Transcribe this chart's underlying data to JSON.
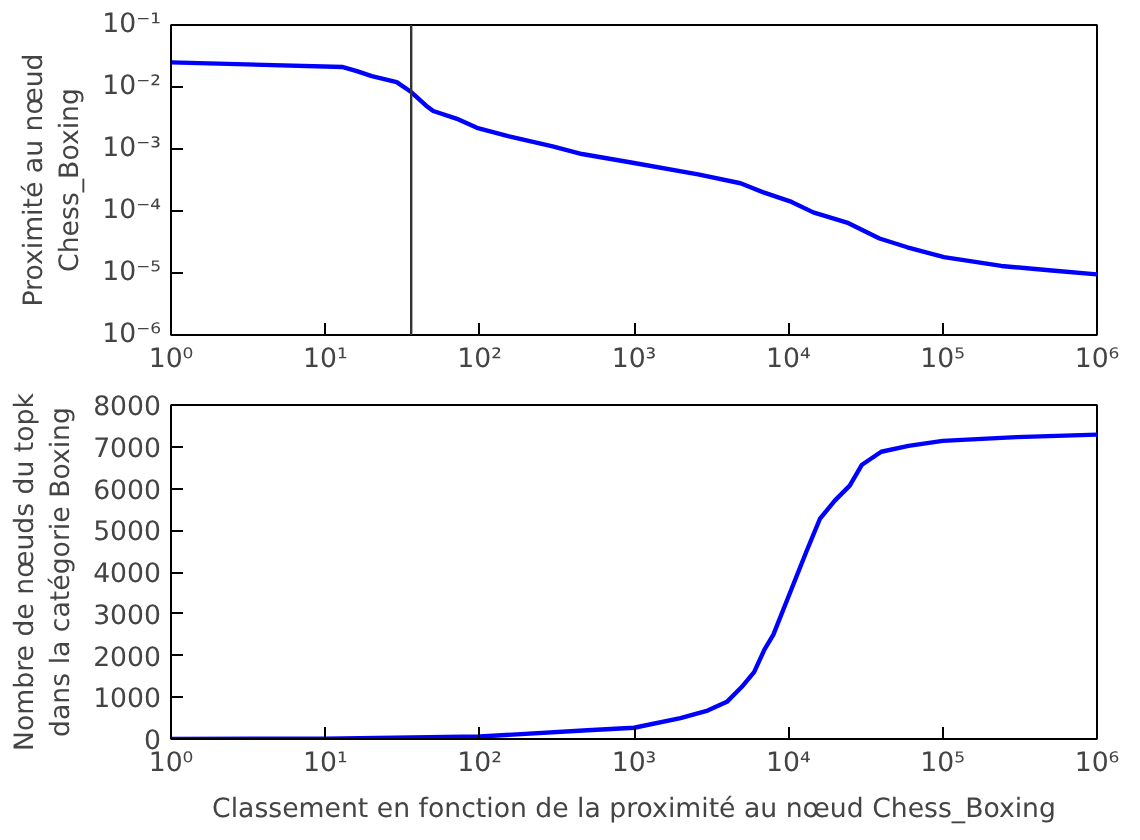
{
  "chart_data": [
    {
      "type": "line",
      "ylabel": "Proximité au nœud\nChess_Boxing",
      "log": "xy",
      "grid": false,
      "marker": "none",
      "line_style": "solid",
      "xlim": [
        1,
        1000000
      ],
      "ylim": [
        1e-06,
        0.1
      ],
      "xticks": [
        {
          "value": 1,
          "label": "10⁰"
        },
        {
          "value": 10,
          "label": "10¹"
        },
        {
          "value": 100,
          "label": "10²"
        },
        {
          "value": 1000,
          "label": "10³"
        },
        {
          "value": 10000,
          "label": "10⁴"
        },
        {
          "value": 100000,
          "label": "10⁵"
        },
        {
          "value": 1000000,
          "label": "10⁶"
        }
      ],
      "yticks": [
        {
          "value": 1e-06,
          "label": "10⁻⁶"
        },
        {
          "value": 1e-05,
          "label": "10⁻⁵"
        },
        {
          "value": 0.0001,
          "label": "10⁻⁴"
        },
        {
          "value": 0.001,
          "label": "10⁻³"
        },
        {
          "value": 0.01,
          "label": "10⁻²"
        },
        {
          "value": 0.1,
          "label": "10⁻¹"
        }
      ],
      "ref_lines": [
        {
          "axis": "x",
          "value": 36,
          "color": "#333333",
          "line_style": "solid"
        }
      ],
      "series": [
        {
          "color": "#0000ff",
          "x": [
            1,
            13,
            16,
            20,
            29,
            36,
            45,
            50,
            73,
            96,
            155,
            297,
            460,
            980,
            2600,
            4900,
            6900,
            10500,
            14500,
            24000,
            39000,
            59000,
            102000,
            240000,
            510000,
            1000000
          ],
          "values": [
            0.025,
            0.021,
            0.018,
            0.015,
            0.012,
            0.0083,
            0.005,
            0.0041,
            0.003,
            0.0022,
            0.0016,
            0.0011,
            0.00083,
            0.0006,
            0.00039,
            0.00028,
            0.0002,
            0.00014,
            9.5e-05,
            6.5e-05,
            3.6e-05,
            2.6e-05,
            1.8e-05,
            1.3e-05,
            1.1e-05,
            9.5e-06
          ]
        }
      ]
    },
    {
      "type": "line",
      "xlabel": "Classement en fonction de la proximité au nœud Chess_Boxing",
      "ylabel": "Nombre de nœuds du topk\ndans la catégorie Boxing",
      "log": "x",
      "grid": false,
      "marker": "none",
      "line_style": "solid",
      "xlim": [
        1,
        1000000
      ],
      "ylim": [
        0,
        8000
      ],
      "xticks": [
        {
          "value": 1,
          "label": "10⁰"
        },
        {
          "value": 10,
          "label": "10¹"
        },
        {
          "value": 100,
          "label": "10²"
        },
        {
          "value": 1000,
          "label": "10³"
        },
        {
          "value": 10000,
          "label": "10⁴"
        },
        {
          "value": 100000,
          "label": "10⁵"
        },
        {
          "value": 1000000,
          "label": "10⁶"
        }
      ],
      "yticks": [
        0,
        1000,
        2000,
        3000,
        4000,
        5000,
        6000,
        7000,
        8000
      ],
      "series": [
        {
          "color": "#0000ff",
          "x": [
            1,
            10,
            100,
            500,
            1000,
            2000,
            3000,
            4000,
            5000,
            6000,
            7000,
            8000,
            10000,
            13000,
            16000,
            20000,
            25000,
            30000,
            40000,
            60000,
            100000,
            300000,
            1000000
          ],
          "values": [
            0,
            10,
            60,
            210,
            270,
            500,
            680,
            890,
            1250,
            1600,
            2140,
            2500,
            3400,
            4460,
            5270,
            5710,
            6070,
            6570,
            6880,
            7020,
            7140,
            7230,
            7290
          ]
        }
      ]
    }
  ]
}
